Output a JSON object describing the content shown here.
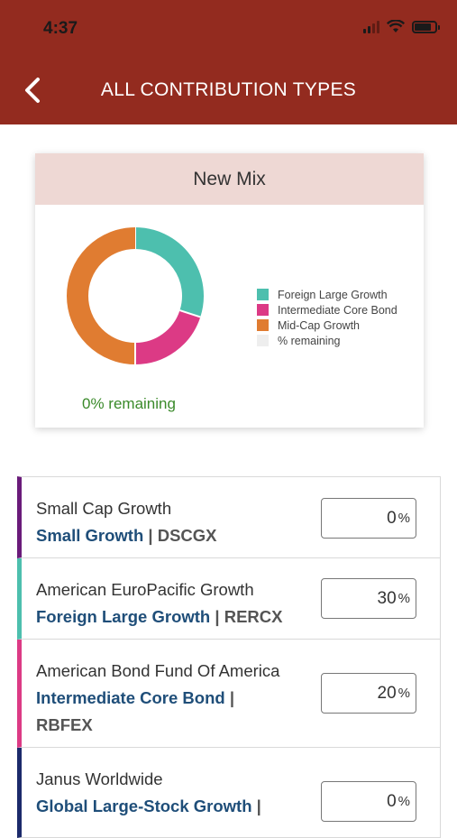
{
  "status": {
    "time": "4:37"
  },
  "header": {
    "title": "ALL CONTRIBUTION TYPES"
  },
  "mix_card": {
    "title": "New Mix",
    "remaining_text": "0% remaining",
    "legend": [
      {
        "label": "Foreign Large Growth",
        "color": "#4dbfae"
      },
      {
        "label": "Intermediate Core Bond",
        "color": "#dc3a85"
      },
      {
        "label": "Mid-Cap Growth",
        "color": "#e07c31"
      },
      {
        "label": "% remaining",
        "color": "#eeeeee"
      }
    ]
  },
  "chart_data": {
    "type": "pie",
    "categories": [
      "Foreign Large Growth",
      "Intermediate Core Bond",
      "Mid-Cap Growth",
      "% remaining"
    ],
    "values": [
      30,
      20,
      50,
      0
    ],
    "colors": [
      "#4dbfae",
      "#dc3a85",
      "#e07c31",
      "#eeeeee"
    ],
    "donut": true,
    "legend": "right"
  },
  "funds": [
    {
      "name": "Small Cap Growth",
      "category": "Small Growth",
      "ticker": "DSCGX",
      "percent": "0",
      "color": "#6a1b7a"
    },
    {
      "name": "American EuroPacific Growth",
      "category": "Foreign Large Growth",
      "ticker": "RERCX",
      "percent": "30",
      "color": "#4dbfae"
    },
    {
      "name": "American Bond Fund Of America",
      "category": "Intermediate Core Bond",
      "ticker": "RBFEX",
      "percent": "20",
      "color": "#dc3a85"
    },
    {
      "name": "Janus Worldwide",
      "category": "Global Large-Stock Growth",
      "ticker": "",
      "percent": "0",
      "color": "#1c2a6b"
    }
  ],
  "percent_symbol": "%"
}
